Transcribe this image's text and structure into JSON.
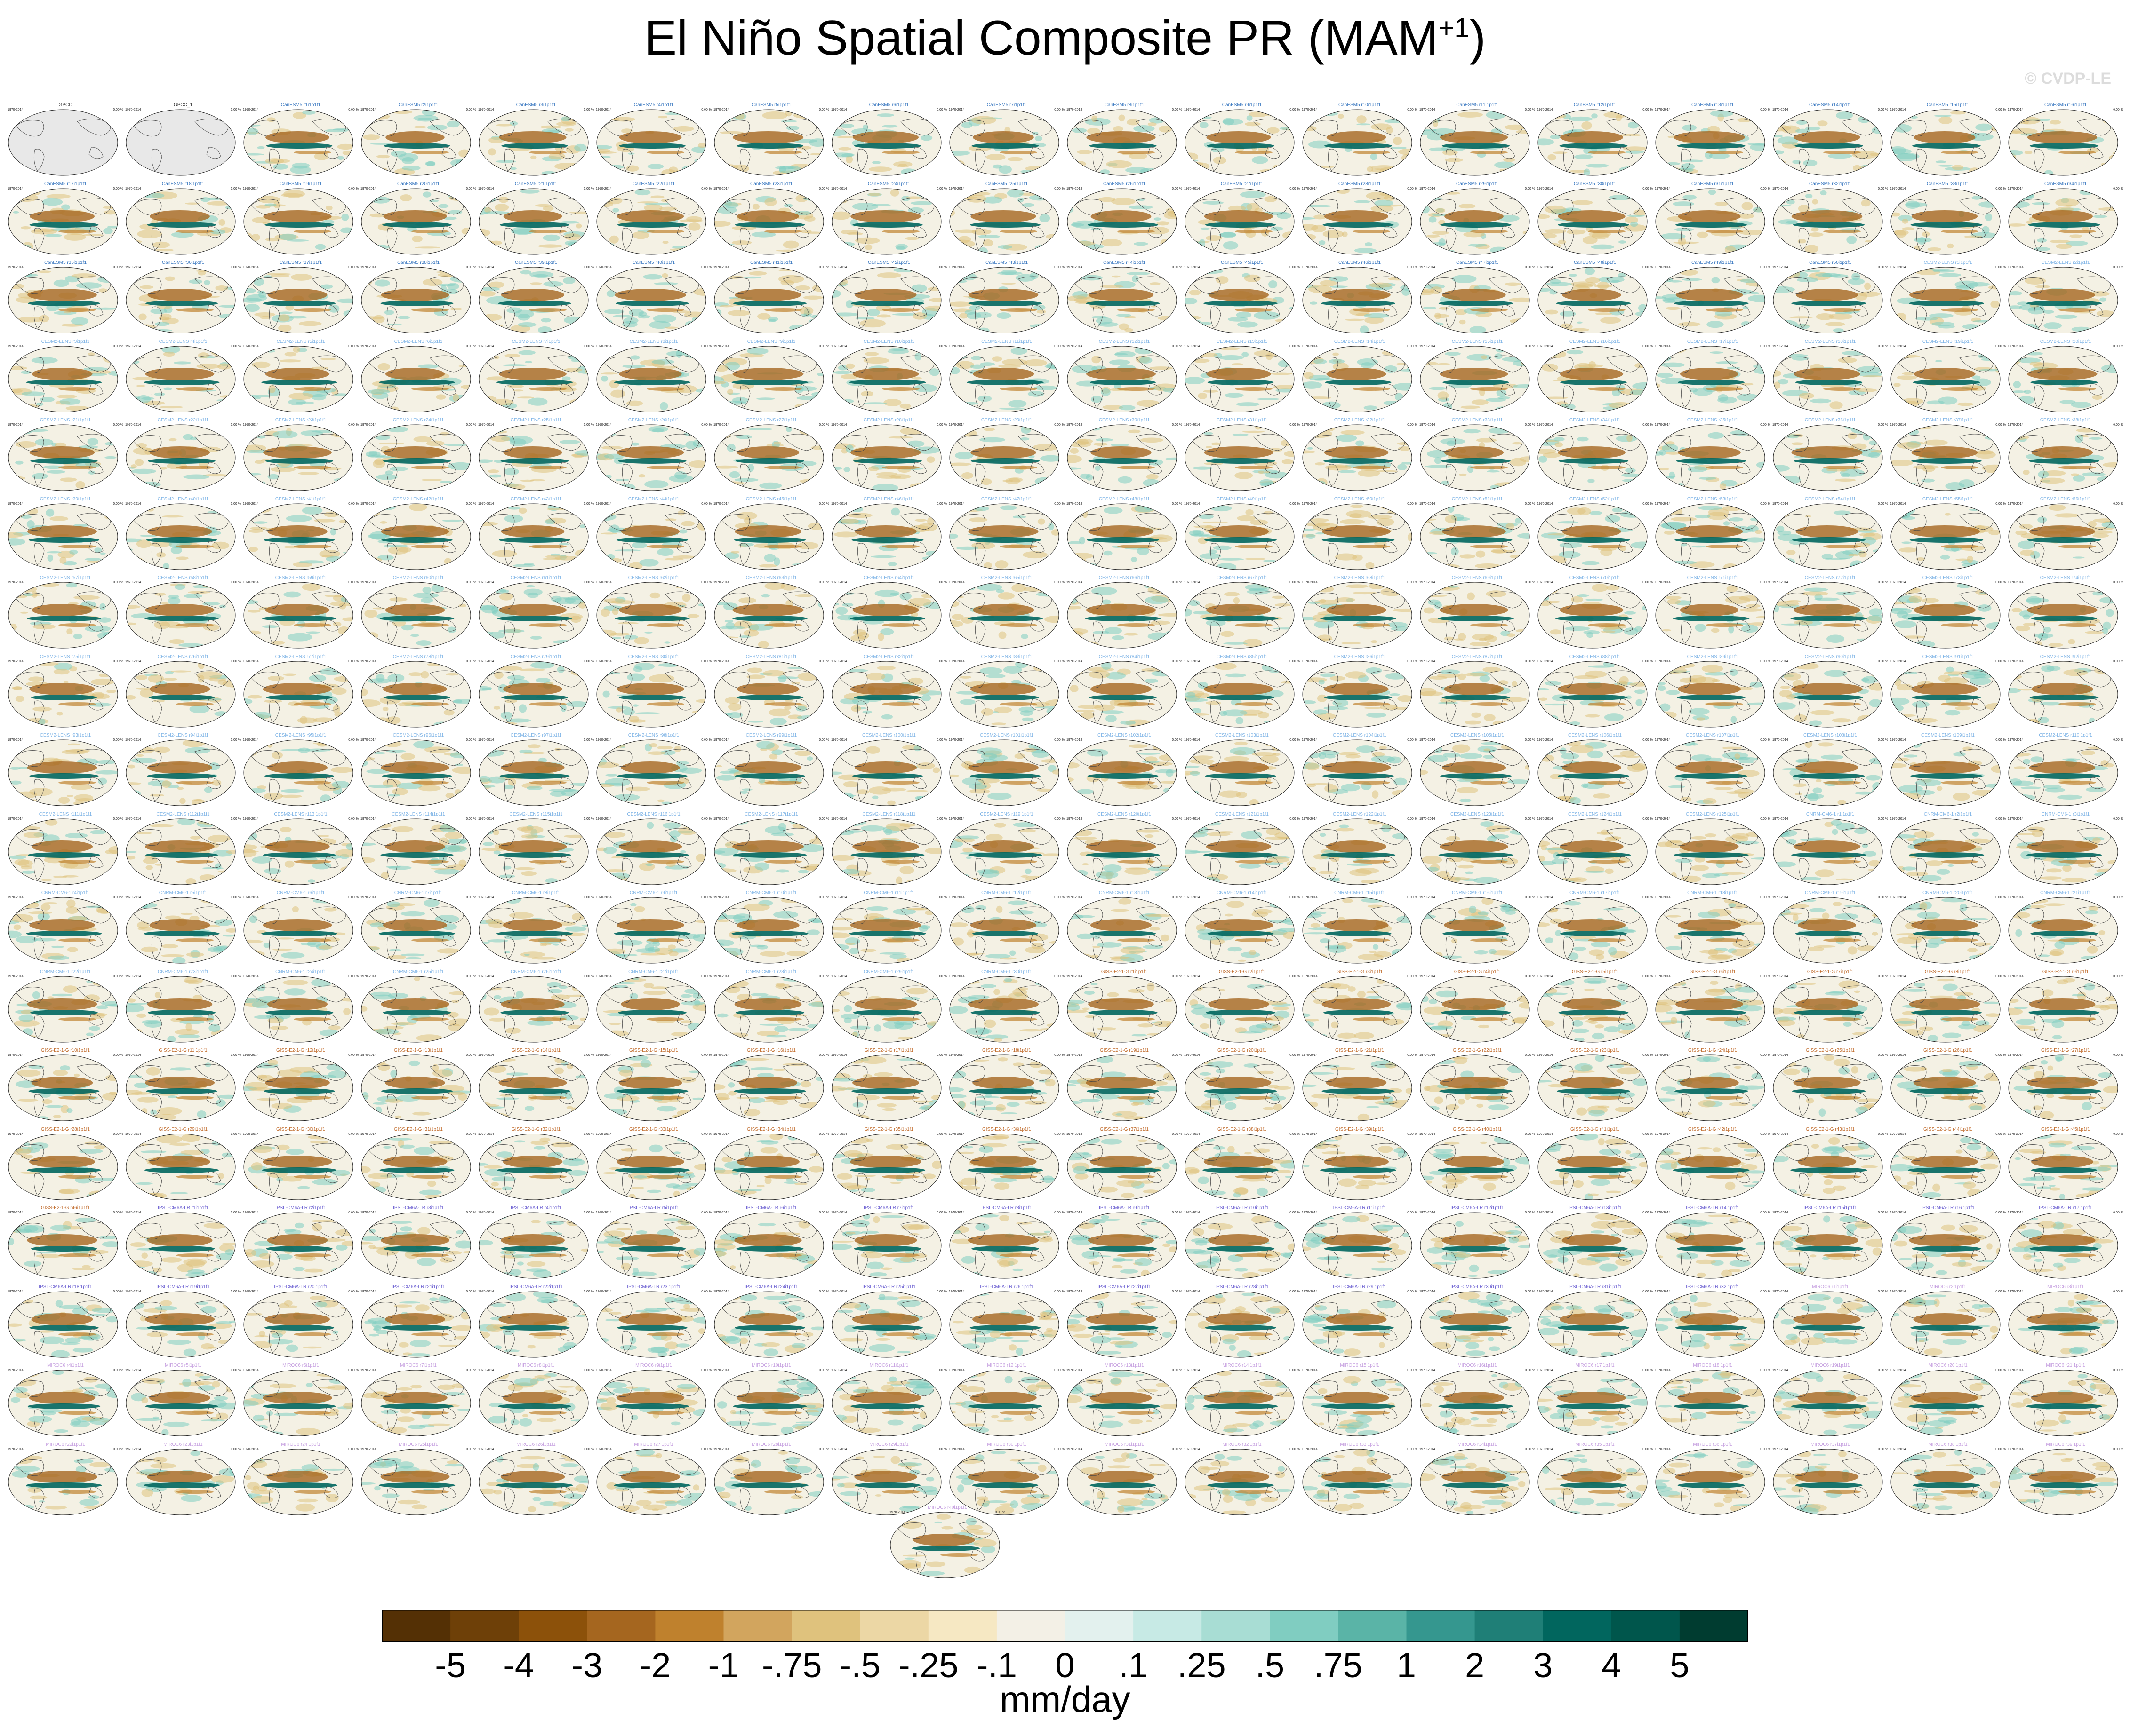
{
  "header": {
    "title_main": "El Niño Spatial Composite PR (MAM",
    "title_sup": "+1",
    "title_end": ")",
    "watermark": "© CVDP-LE"
  },
  "chart_data": {
    "type": "heatmap",
    "description_units": "mm/day",
    "panel_grid": {
      "rows": 18,
      "cols": 18,
      "extra_bottom_panels": 1
    },
    "observation_panels": [
      "GPCC",
      "GPCC_1"
    ],
    "panel_period": "1970-2014",
    "panel_stat_text": "0.00 %",
    "model_groups": [
      {
        "name": "CanESM5",
        "color": "#3a78c0",
        "count": 50
      },
      {
        "name": "CESM2-LENS",
        "color": "#7fb4e6",
        "count": 125
      },
      {
        "name": "CNRM-CM6-1",
        "color": "#7fb4e6",
        "count": 30
      },
      {
        "name": "GISS-E2-1-G",
        "color": "#c06a2a",
        "count": 46
      },
      {
        "name": "IPSL-CM6A-LR",
        "color": "#6b5fd1",
        "count": 32
      },
      {
        "name": "MIROC6",
        "color": "#c6a0e0",
        "count": 40
      }
    ],
    "colorbar": {
      "labels": [
        "-5",
        "-4",
        "-3",
        "-2",
        "-1",
        "-.75",
        "-.5",
        "-.25",
        "-.1",
        "0",
        ".1",
        ".25",
        ".5",
        ".75",
        "1",
        "2",
        "3",
        "4",
        "5"
      ],
      "colors": [
        "#543005",
        "#6e4008",
        "#8c510a",
        "#a5661f",
        "#bf812d",
        "#d2a55e",
        "#dfc27d",
        "#ecd7a5",
        "#f6e8c3",
        "#f3f0e6",
        "#e3f1ee",
        "#c7eae5",
        "#a8ddd4",
        "#80cdc1",
        "#5ab4a7",
        "#35978f",
        "#1f7f77",
        "#01665e",
        "#00564c",
        "#003c30"
      ]
    },
    "xlabel": "mm/day"
  }
}
